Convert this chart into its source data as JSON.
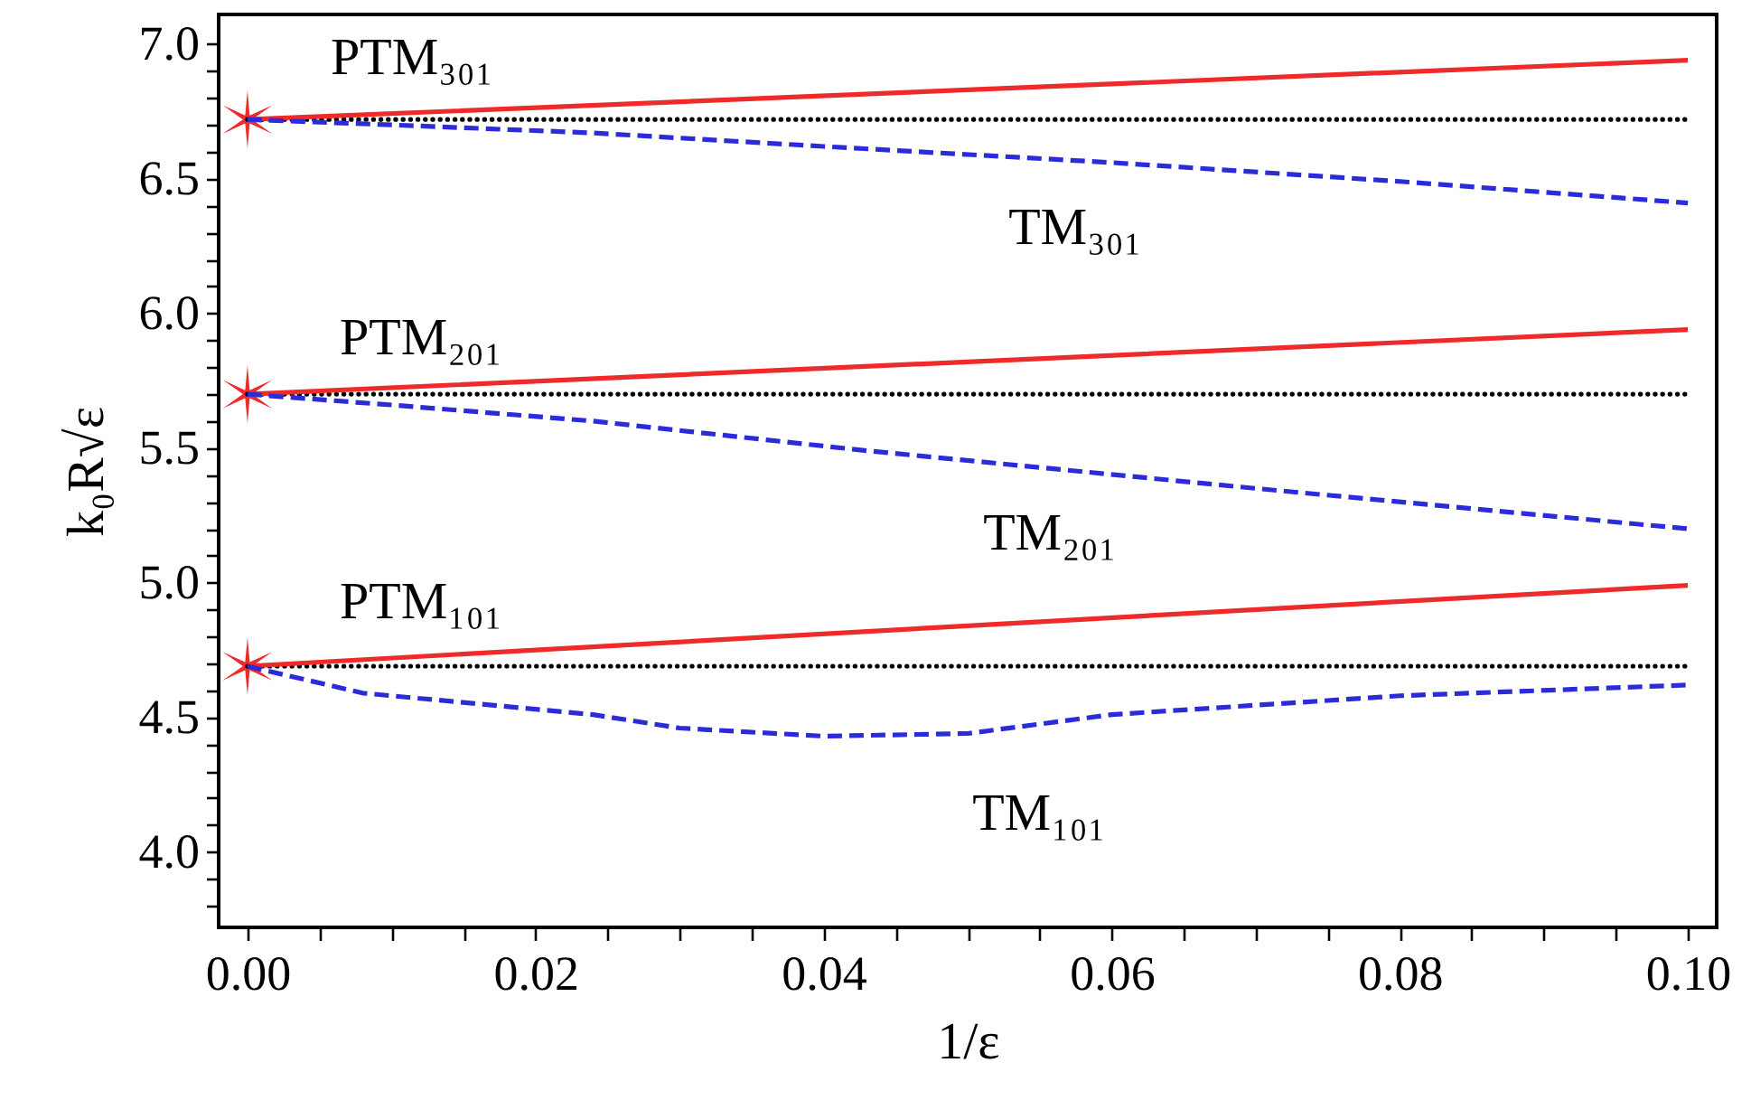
{
  "chart_data": {
    "type": "line",
    "xlabel": "1/ε",
    "ylabel": "k₀R√ε",
    "xlim": [
      -0.002,
      0.102
    ],
    "ylim": [
      3.72,
      7.11
    ],
    "xticks": [
      {
        "value": 0,
        "label": "0.00"
      },
      {
        "value": 0.005,
        "label": null
      },
      {
        "value": 0.01,
        "label": null
      },
      {
        "value": 0.015,
        "label": null
      },
      {
        "value": 0.02,
        "label": "0.02"
      },
      {
        "value": 0.025,
        "label": null
      },
      {
        "value": 0.03,
        "label": null
      },
      {
        "value": 0.035,
        "label": null
      },
      {
        "value": 0.04,
        "label": "0.04"
      },
      {
        "value": 0.045,
        "label": null
      },
      {
        "value": 0.05,
        "label": null
      },
      {
        "value": 0.055,
        "label": null
      },
      {
        "value": 0.06,
        "label": "0.06"
      },
      {
        "value": 0.065,
        "label": null
      },
      {
        "value": 0.07,
        "label": null
      },
      {
        "value": 0.075,
        "label": null
      },
      {
        "value": 0.08,
        "label": "0.08"
      },
      {
        "value": 0.085,
        "label": null
      },
      {
        "value": 0.09,
        "label": null
      },
      {
        "value": 0.095,
        "label": null
      },
      {
        "value": 0.1,
        "label": "0.10"
      }
    ],
    "yticks": [
      {
        "value": 3.8,
        "label": null
      },
      {
        "value": 3.9,
        "label": null
      },
      {
        "value": 4,
        "label": "4.0"
      },
      {
        "value": 4.1,
        "label": null
      },
      {
        "value": 4.2,
        "label": null
      },
      {
        "value": 4.3,
        "label": null
      },
      {
        "value": 4.4,
        "label": null
      },
      {
        "value": 4.5,
        "label": "4.5"
      },
      {
        "value": 4.6,
        "label": null
      },
      {
        "value": 4.7,
        "label": null
      },
      {
        "value": 4.8,
        "label": null
      },
      {
        "value": 4.9,
        "label": null
      },
      {
        "value": 5,
        "label": "5.0"
      },
      {
        "value": 5.1,
        "label": null
      },
      {
        "value": 5.2,
        "label": null
      },
      {
        "value": 5.3,
        "label": null
      },
      {
        "value": 5.4,
        "label": null
      },
      {
        "value": 5.5,
        "label": "5.5"
      },
      {
        "value": 5.6,
        "label": null
      },
      {
        "value": 5.7,
        "label": null
      },
      {
        "value": 5.8,
        "label": null
      },
      {
        "value": 5.9,
        "label": null
      },
      {
        "value": 6,
        "label": "6.0"
      },
      {
        "value": 6.1,
        "label": null
      },
      {
        "value": 6.2,
        "label": null
      },
      {
        "value": 6.3,
        "label": null
      },
      {
        "value": 6.4,
        "label": null
      },
      {
        "value": 6.5,
        "label": "6.5"
      },
      {
        "value": 6.6,
        "label": null
      },
      {
        "value": 6.7,
        "label": null
      },
      {
        "value": 6.8,
        "label": null
      },
      {
        "value": 6.9,
        "label": null
      },
      {
        "value": 7,
        "label": "7.0"
      }
    ],
    "grid": false,
    "series": [
      {
        "color": "#000000",
        "line_style": "dotted",
        "x": [
          0,
          0.1
        ],
        "values": [
          6.72,
          6.72
        ]
      },
      {
        "color": "#000000",
        "line_style": "dotted",
        "x": [
          0,
          0.1
        ],
        "values": [
          5.7,
          5.7
        ]
      },
      {
        "color": "#000000",
        "line_style": "dotted",
        "x": [
          0,
          0.1
        ],
        "values": [
          4.69,
          4.69
        ]
      },
      {
        "color": "#ee2a2a",
        "line_style": "solid",
        "x": [
          0,
          0.05,
          0.1
        ],
        "values": [
          6.72,
          6.83,
          6.94
        ]
      },
      {
        "color": "#ee2a2a",
        "line_style": "solid",
        "x": [
          0,
          0.05,
          0.1
        ],
        "values": [
          5.7,
          5.82,
          5.94
        ]
      },
      {
        "color": "#ee2a2a",
        "line_style": "solid",
        "x": [
          0,
          0.05,
          0.1
        ],
        "values": [
          4.69,
          4.84,
          4.99
        ]
      },
      {
        "color": "#2b2bd9",
        "line_style": "dashed",
        "x": [
          0,
          0.01,
          0.024,
          0.04,
          0.06,
          0.08,
          0.1
        ],
        "values": [
          6.72,
          6.7,
          6.67,
          6.62,
          6.56,
          6.49,
          6.41
        ]
      },
      {
        "color": "#2b2bd9",
        "line_style": "dashed",
        "x": [
          0,
          0.01,
          0.024,
          0.043,
          0.07,
          0.1
        ],
        "values": [
          5.7,
          5.66,
          5.6,
          5.49,
          5.35,
          5.2
        ]
      },
      {
        "color": "#2b2bd9",
        "line_style": "dashed",
        "x": [
          0,
          0.008,
          0.024,
          0.03,
          0.04,
          0.05,
          0.06,
          0.08,
          0.1
        ],
        "values": [
          4.69,
          4.59,
          4.51,
          4.46,
          4.43,
          4.44,
          4.51,
          4.58,
          4.62
        ]
      },
      {
        "type": "scatter",
        "color": "#ee2a2a",
        "marker": "cross",
        "x": [
          0,
          0,
          0
        ],
        "values": [
          6.72,
          5.7,
          4.69
        ]
      }
    ],
    "annotations": [
      "PTM₃₀₁",
      "PTM₂₀₁",
      "PTM₁₀₁",
      "TM₃₀₁",
      "TM₂₀₁",
      "TM₁₀₁"
    ]
  }
}
